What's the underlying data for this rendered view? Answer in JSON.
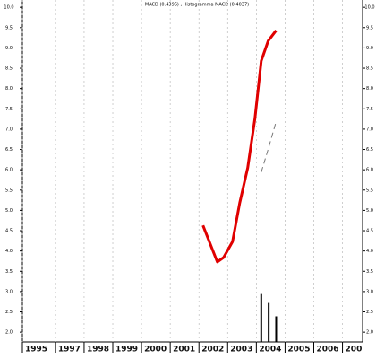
{
  "chart_data": {
    "type": "line",
    "title": "MACD (0.4396) , Histogramma MACD (0.4037)",
    "xlim": [
      1995.85,
      2007.7
    ],
    "ylim": [
      1.76,
      10.07
    ],
    "xticks": [
      {
        "value": 1995.85,
        "label": "1995"
      },
      1997,
      1998,
      1999,
      2000,
      2001,
      2002,
      2003,
      2004,
      2005,
      2006,
      {
        "value": 2007,
        "label": "200"
      }
    ],
    "yticks": [
      {
        "value": 10,
        "label": "10.0"
      },
      {
        "value": 9.5,
        "label": "9.5"
      },
      {
        "value": 9,
        "label": "9.0"
      },
      {
        "value": 8.5,
        "label": "8.5"
      },
      {
        "value": 8,
        "label": "8.0"
      },
      {
        "value": 7.5,
        "label": "7.5"
      },
      {
        "value": 7,
        "label": "7.0"
      },
      {
        "value": 6.5,
        "label": "6.5"
      },
      {
        "value": 6,
        "label": "6.0"
      },
      {
        "value": 5.5,
        "label": "5.5"
      },
      {
        "value": 5,
        "label": "5.0"
      },
      {
        "value": 4.5,
        "label": "4.5"
      },
      {
        "value": 4,
        "label": "4.0"
      },
      {
        "value": 3.5,
        "label": "3.5"
      },
      {
        "value": 3,
        "label": "3.0"
      },
      {
        "value": 2.5,
        "label": "2.5"
      },
      {
        "value": 2,
        "label": "2.0"
      }
    ],
    "grid": true,
    "series": [
      {
        "style": "line",
        "color": "#e00000",
        "x": [
          2002.14,
          2002.64,
          2002.86,
          2003.17,
          2003.42,
          2003.7,
          2003.95,
          2004.17,
          2004.41,
          2004.69
        ],
        "values": [
          4.63,
          3.73,
          3.84,
          4.23,
          5.18,
          6.05,
          7.26,
          8.68,
          9.17,
          9.43
        ]
      },
      {
        "style": "dashed",
        "color": "#777777",
        "x": [
          2004.17,
          2004.43,
          2004.69
        ],
        "values": [
          5.94,
          6.55,
          7.19
        ]
      },
      {
        "style": "bar",
        "color": "#000000",
        "x": [
          2004.17,
          2004.43,
          2004.69
        ],
        "values": [
          2.94,
          2.72,
          2.39
        ]
      }
    ]
  }
}
